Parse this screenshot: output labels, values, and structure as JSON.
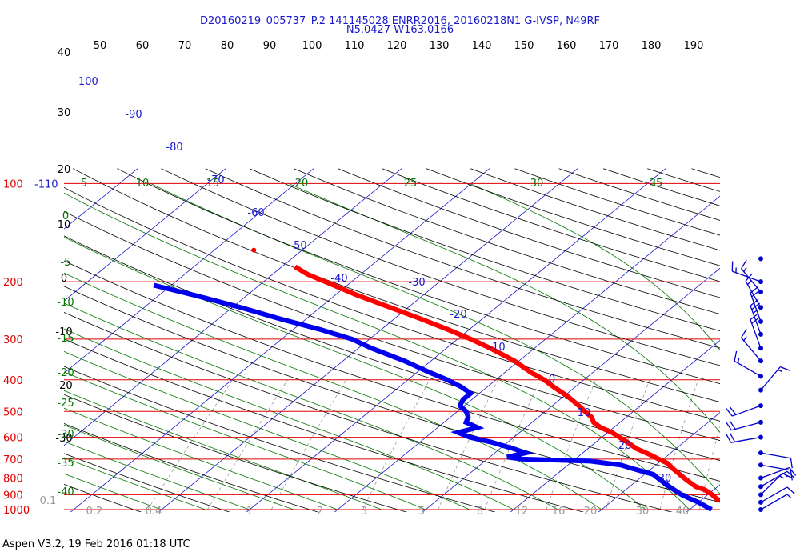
{
  "title_line1": "D20160219_005737_P.2 141145028 ENRR2016, 20160218N1 G-IVSP, N49RF",
  "title_line2": "N5.0427 W163.0166",
  "footer": "Aspen V3.2, 19 Feb 2016  01:18 UTC",
  "colors": {
    "isobar": "#e00000",
    "temperature": "#ff0000",
    "dewpoint": "#0000ee",
    "isotherm": "#1a1acc",
    "dry_adiabat": "#000000",
    "moist_adiabat": "#007700",
    "mixing_ratio": "#999999",
    "wind": "#0000cc"
  },
  "chart_data": {
    "type": "skew-t",
    "pressure_labels_hpa": [
      "100",
      "200",
      "300",
      "400",
      "500",
      "600",
      "700",
      "800",
      "900",
      "1000"
    ],
    "top_pressure_label": "-110",
    "potential_temp_labels_k": [
      "50",
      "60",
      "70",
      "80",
      "90",
      "100",
      "110",
      "120",
      "130",
      "140",
      "150",
      "160",
      "170",
      "180",
      "190"
    ],
    "left_axis_labels": [
      "40",
      "30",
      "20",
      "10",
      "0",
      "-10",
      "-20",
      "-30"
    ],
    "isotherm_labels_c": [
      "-100",
      "-90",
      "-80",
      "-70",
      "-60",
      "-50",
      "-40",
      "-30",
      "-20",
      "-10",
      "0",
      "10",
      "20",
      "30"
    ],
    "moist_adiabat_top_labels": [
      "5",
      "10",
      "15",
      "20",
      "25",
      "30",
      "35"
    ],
    "moist_adiabat_left_labels": [
      "0",
      "-5",
      "-10",
      "-15",
      "-20",
      "-25",
      "-30",
      "-35",
      "-40"
    ],
    "mixing_ratio_labels": [
      "0.1",
      "0.2",
      "0.4",
      "1",
      "2",
      "3",
      "5",
      "8",
      "12",
      "16",
      "20",
      "30",
      "40"
    ],
    "temperature_profile": [
      {
        "p": 1000,
        "t": 26.5
      },
      {
        "p": 980,
        "t": 25.0
      },
      {
        "p": 950,
        "t": 23.0
      },
      {
        "p": 925,
        "t": 21.5
      },
      {
        "p": 900,
        "t": 20.5
      },
      {
        "p": 870,
        "t": 19.0
      },
      {
        "p": 850,
        "t": 17.5
      },
      {
        "p": 820,
        "t": 16.0
      },
      {
        "p": 800,
        "t": 15.0
      },
      {
        "p": 780,
        "t": 14.0
      },
      {
        "p": 750,
        "t": 12.5
      },
      {
        "p": 720,
        "t": 11.0
      },
      {
        "p": 700,
        "t": 9.5
      },
      {
        "p": 680,
        "t": 8.0
      },
      {
        "p": 650,
        "t": 5.5
      },
      {
        "p": 620,
        "t": 3.5
      },
      {
        "p": 600,
        "t": 2.0
      },
      {
        "p": 580,
        "t": 0.5
      },
      {
        "p": 560,
        "t": -1.5
      },
      {
        "p": 540,
        "t": -3.0
      },
      {
        "p": 520,
        "t": -4.0
      },
      {
        "p": 500,
        "t": -5.5
      },
      {
        "p": 480,
        "t": -7.0
      },
      {
        "p": 450,
        "t": -9.5
      },
      {
        "p": 420,
        "t": -12.5
      },
      {
        "p": 400,
        "t": -14.5
      },
      {
        "p": 380,
        "t": -17.0
      },
      {
        "p": 350,
        "t": -20.5
      },
      {
        "p": 320,
        "t": -25.0
      },
      {
        "p": 300,
        "t": -28.5
      },
      {
        "p": 280,
        "t": -32.5
      },
      {
        "p": 260,
        "t": -37.0
      },
      {
        "p": 240,
        "t": -42.0
      },
      {
        "p": 220,
        "t": -47.5
      },
      {
        "p": 200,
        "t": -53.0
      },
      {
        "p": 190,
        "t": -56.0
      },
      {
        "p": 180,
        "t": -58.5
      }
    ],
    "dewpoint_profile": [
      {
        "p": 1000,
        "t": 22.5
      },
      {
        "p": 980,
        "t": 21.5
      },
      {
        "p": 950,
        "t": 20.0
      },
      {
        "p": 925,
        "t": 18.5
      },
      {
        "p": 900,
        "t": 17.0
      },
      {
        "p": 870,
        "t": 15.5
      },
      {
        "p": 850,
        "t": 14.5
      },
      {
        "p": 820,
        "t": 13.0
      },
      {
        "p": 800,
        "t": 12.0
      },
      {
        "p": 780,
        "t": 11.0
      },
      {
        "p": 750,
        "t": 8.0
      },
      {
        "p": 730,
        "t": 6.0
      },
      {
        "p": 710,
        "t": 2.0
      },
      {
        "p": 700,
        "t": -6.0
      },
      {
        "p": 690,
        "t": -8.0
      },
      {
        "p": 670,
        "t": -6.5
      },
      {
        "p": 650,
        "t": -8.5
      },
      {
        "p": 620,
        "t": -12.0
      },
      {
        "p": 600,
        "t": -15.0
      },
      {
        "p": 580,
        "t": -17.0
      },
      {
        "p": 560,
        "t": -15.5
      },
      {
        "p": 540,
        "t": -17.5
      },
      {
        "p": 520,
        "t": -18.0
      },
      {
        "p": 500,
        "t": -19.0
      },
      {
        "p": 480,
        "t": -20.5
      },
      {
        "p": 460,
        "t": -21.0
      },
      {
        "p": 440,
        "t": -21.0
      },
      {
        "p": 420,
        "t": -23.0
      },
      {
        "p": 400,
        "t": -25.5
      },
      {
        "p": 380,
        "t": -28.5
      },
      {
        "p": 350,
        "t": -33.0
      },
      {
        "p": 320,
        "t": -38.5
      },
      {
        "p": 300,
        "t": -42.0
      },
      {
        "p": 280,
        "t": -47.0
      },
      {
        "p": 260,
        "t": -53.0
      },
      {
        "p": 240,
        "t": -59.0
      },
      {
        "p": 220,
        "t": -66.0
      },
      {
        "p": 205,
        "t": -72.0
      }
    ],
    "isolated_temperature_point": {
      "p": 160,
      "t": -65.5
    },
    "wind_barbs": [
      {
        "p": 1000,
        "dir": 60,
        "spd": 5
      },
      {
        "p": 950,
        "dir": 60,
        "spd": 10
      },
      {
        "p": 900,
        "dir": 45,
        "spd": 15
      },
      {
        "p": 850,
        "dir": 60,
        "spd": 15
      },
      {
        "p": 800,
        "dir": 70,
        "spd": 10
      },
      {
        "p": 730,
        "dir": 100,
        "spd": 10
      },
      {
        "p": 670,
        "dir": 100,
        "spd": 10
      },
      {
        "p": 600,
        "dir": 260,
        "spd": 20
      },
      {
        "p": 540,
        "dir": 255,
        "spd": 20
      },
      {
        "p": 480,
        "dir": 250,
        "spd": 20
      },
      {
        "p": 430,
        "dir": 40,
        "spd": 15
      },
      {
        "p": 390,
        "dir": 300,
        "spd": 15
      },
      {
        "p": 350,
        "dir": 320,
        "spd": 15
      },
      {
        "p": 320,
        "dir": 340,
        "spd": 20
      },
      {
        "p": 290,
        "dir": 340,
        "spd": 25
      },
      {
        "p": 265,
        "dir": 340,
        "spd": 20
      },
      {
        "p": 240,
        "dir": 330,
        "spd": 15
      },
      {
        "p": 215,
        "dir": 320,
        "spd": 15
      },
      {
        "p": 200,
        "dir": 290,
        "spd": 15
      },
      {
        "p": 170,
        "dir": 0,
        "spd": 0
      }
    ]
  }
}
